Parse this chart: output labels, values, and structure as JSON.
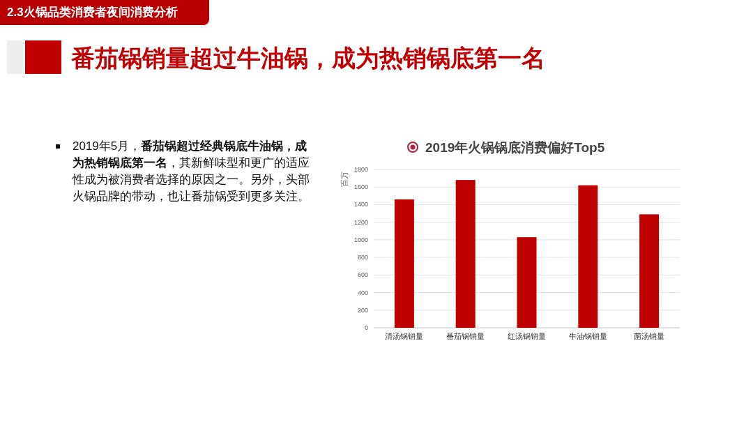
{
  "chart_data": {
    "type": "bar",
    "title": "2019年火锅锅底消费偏好Top5",
    "ylabel": "百万",
    "categories": [
      "清汤锅销量",
      "番茄锅销量",
      "红汤锅销量",
      "牛油锅销量",
      "菌汤销量"
    ],
    "values": [
      1460,
      1680,
      1030,
      1620,
      1290
    ],
    "color": "#c00000",
    "ylim": [
      0,
      1800
    ],
    "yticks": [
      0,
      200,
      400,
      600,
      800,
      1000,
      1200,
      1400,
      1600,
      1800
    ],
    "grid": "y",
    "annotations": [
      "2.3火锅品类消费者夜间消费分析",
      "番茄锅销量超过牛油锅，成为热销锅底第一名",
      "2019年5月，",
      "番茄锅超过经典锅底牛油锅，成为热销锅底第一名",
      "，其新鲜味型和更广的适应性成为被消费者选择的原因之一。另外，头部火锅品牌的带动，也让番茄锅受到更多关注。"
    ]
  }
}
